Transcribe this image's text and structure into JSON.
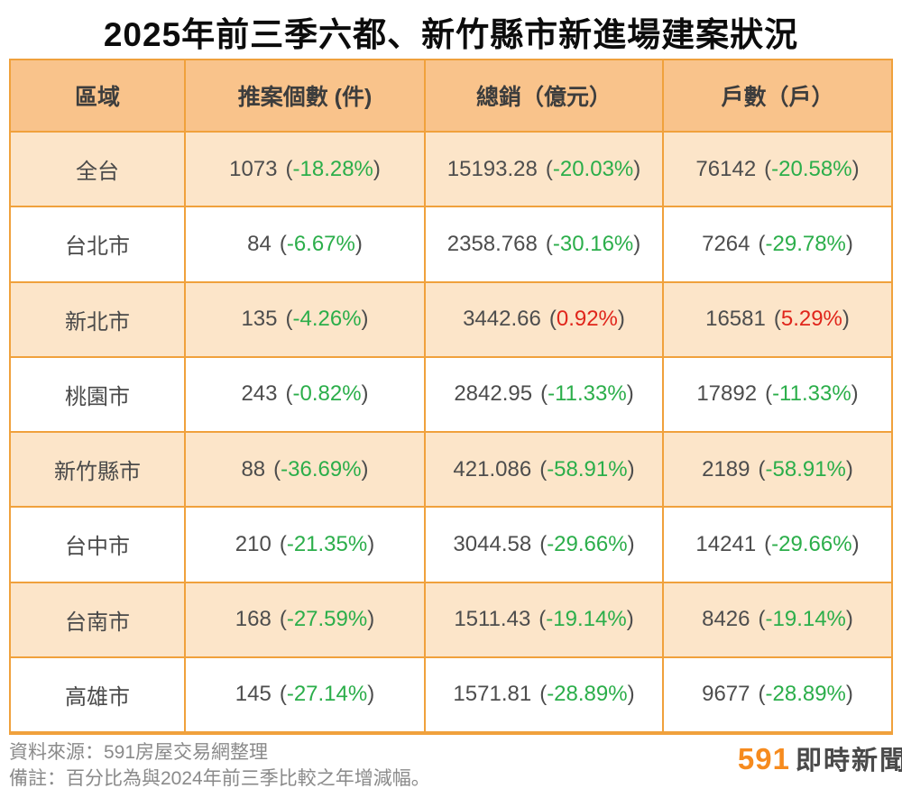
{
  "title": "2025年前三季六都、新竹縣市新進場建案狀況",
  "chart_data": {
    "type": "table",
    "title": "2025年前三季六都、新竹縣市新進場建案狀況",
    "columns": [
      "區域",
      "推案個數 (件)",
      "總銷（億元）",
      "戶數（戶）"
    ],
    "rows": [
      {
        "region": "全台",
        "cells": [
          {
            "value": "1073",
            "pct": "-18.28%",
            "dir": "down"
          },
          {
            "value": "15193.28",
            "pct": "-20.03%",
            "dir": "down"
          },
          {
            "value": "76142",
            "pct": "-20.58%",
            "dir": "down"
          }
        ]
      },
      {
        "region": "台北市",
        "cells": [
          {
            "value": "84",
            "pct": "-6.67%",
            "dir": "down"
          },
          {
            "value": "2358.768",
            "pct": "-30.16%",
            "dir": "down"
          },
          {
            "value": "7264",
            "pct": "-29.78%",
            "dir": "down"
          }
        ]
      },
      {
        "region": "新北市",
        "cells": [
          {
            "value": "135",
            "pct": "-4.26%",
            "dir": "down"
          },
          {
            "value": "3442.66",
            "pct": "0.92%",
            "dir": "up"
          },
          {
            "value": "16581",
            "pct": "5.29%",
            "dir": "up"
          }
        ]
      },
      {
        "region": "桃園市",
        "cells": [
          {
            "value": "243",
            "pct": "-0.82%",
            "dir": "down"
          },
          {
            "value": "2842.95",
            "pct": "-11.33%",
            "dir": "down"
          },
          {
            "value": "17892",
            "pct": "-11.33%",
            "dir": "down"
          }
        ]
      },
      {
        "region": "新竹縣市",
        "cells": [
          {
            "value": "88",
            "pct": "-36.69%",
            "dir": "down"
          },
          {
            "value": "421.086",
            "pct": "-58.91%",
            "dir": "down"
          },
          {
            "value": "2189",
            "pct": "-58.91%",
            "dir": "down"
          }
        ]
      },
      {
        "region": "台中市",
        "cells": [
          {
            "value": "210",
            "pct": "-21.35%",
            "dir": "down"
          },
          {
            "value": "3044.58",
            "pct": "-29.66%",
            "dir": "down"
          },
          {
            "value": "14241",
            "pct": "-29.66%",
            "dir": "down"
          }
        ]
      },
      {
        "region": "台南市",
        "cells": [
          {
            "value": "168",
            "pct": "-27.59%",
            "dir": "down"
          },
          {
            "value": "1511.43",
            "pct": "-19.14%",
            "dir": "down"
          },
          {
            "value": "8426",
            "pct": "-19.14%",
            "dir": "down"
          }
        ]
      },
      {
        "region": "高雄市",
        "cells": [
          {
            "value": "145",
            "pct": "-27.14%",
            "dir": "down"
          },
          {
            "value": "1571.81",
            "pct": "-28.89%",
            "dir": "down"
          },
          {
            "value": "9677",
            "pct": "-28.89%",
            "dir": "down"
          }
        ]
      }
    ]
  },
  "footer": {
    "source": "資料來源：591房屋交易網整理",
    "note": "備註：百分比為與2024年前三季比較之年增減幅。",
    "logo_number": "591",
    "logo_text": "即時新聞"
  },
  "colors": {
    "header_bg": "#f9c38b",
    "row_peach_bg": "#fce5c9",
    "row_white_bg": "#ffffff",
    "border": "#f0a13c",
    "text_dark": "#4d4d4d",
    "pct_down_green": "#2bae4a",
    "pct_up_red": "#e0251b",
    "footer_gray": "#8a8a8a",
    "logo_orange": "#f68b1e"
  }
}
